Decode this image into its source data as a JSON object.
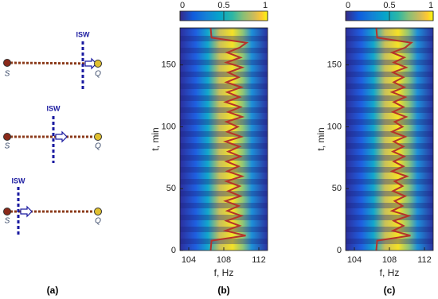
{
  "diagram": {
    "caption": "(a)",
    "rows": [
      {
        "source": "S",
        "receiver": "Q",
        "wave": "ISW"
      },
      {
        "source": "S",
        "receiver": "Q",
        "wave": "ISW"
      },
      {
        "source": "S",
        "receiver": "Q",
        "wave": "ISW"
      }
    ]
  },
  "chart_data": [
    {
      "type": "heatmap",
      "caption": "(b)",
      "xlabel": "f, Hz",
      "ylabel": "t, min",
      "xlim": [
        103,
        113
      ],
      "xticks": [
        104,
        108,
        112
      ],
      "ylim": [
        0,
        180
      ],
      "yticks": [
        0,
        50,
        100,
        150
      ],
      "colorbar_lim": [
        0,
        1
      ],
      "colorbar_ticks": [
        0,
        0.5,
        1
      ],
      "series": [
        {
          "color": "#b5332a",
          "t": [
            0,
            8,
            12,
            16,
            20,
            24,
            28,
            32,
            36,
            40,
            44,
            48,
            52,
            56,
            60,
            64,
            68,
            72,
            76,
            80,
            84,
            88,
            92,
            96,
            100,
            104,
            108,
            112,
            116,
            120,
            124,
            128,
            132,
            136,
            140,
            144,
            148,
            152,
            156,
            160,
            164,
            168,
            172,
            180
          ],
          "f": [
            106.5,
            106.6,
            110.5,
            108.2,
            109.8,
            108.3,
            110,
            108.4,
            109.7,
            108.2,
            109.9,
            108.5,
            109.8,
            108.3,
            110.1,
            108.4,
            109.7,
            108.3,
            109.9,
            108.5,
            109.8,
            108.2,
            110,
            108.4,
            109.6,
            108.3,
            110.1,
            108.5,
            109.9,
            108.2,
            109.8,
            108.4,
            110,
            108.3,
            109.7,
            108.5,
            110.1,
            108.3,
            109.9,
            108.4,
            109.8,
            110.6,
            106.6,
            106.5
          ]
        }
      ]
    },
    {
      "type": "heatmap",
      "caption": "(c)",
      "xlabel": "f, Hz",
      "ylabel": "t, min",
      "xlim": [
        103,
        113
      ],
      "xticks": [
        104,
        108,
        112
      ],
      "ylim": [
        0,
        180
      ],
      "yticks": [
        0,
        50,
        100,
        150
      ],
      "colorbar_lim": [
        0,
        1
      ],
      "colorbar_ticks": [
        0,
        0.5,
        1
      ],
      "series": [
        {
          "color": "#b5332a",
          "t": [
            0,
            8,
            12,
            16,
            20,
            24,
            28,
            32,
            36,
            40,
            44,
            48,
            52,
            56,
            60,
            64,
            68,
            72,
            76,
            80,
            84,
            88,
            92,
            96,
            100,
            104,
            108,
            112,
            116,
            120,
            124,
            128,
            132,
            136,
            140,
            144,
            148,
            152,
            156,
            160,
            164,
            168,
            172,
            180
          ],
          "f": [
            106.5,
            106.6,
            110.4,
            108.4,
            109.6,
            108.5,
            110.2,
            108.3,
            109.5,
            108.6,
            109.8,
            108.4,
            109.5,
            108.6,
            110,
            108.3,
            109.6,
            108.5,
            109.7,
            108.4,
            109.6,
            108.5,
            109.8,
            108.3,
            109.5,
            108.6,
            109.9,
            108.4,
            109.6,
            108.5,
            109.8,
            108.3,
            109.7,
            108.5,
            109.6,
            108.4,
            109.9,
            108.5,
            109.7,
            108.3,
            109.8,
            110.5,
            106.6,
            106.5
          ]
        }
      ]
    }
  ]
}
